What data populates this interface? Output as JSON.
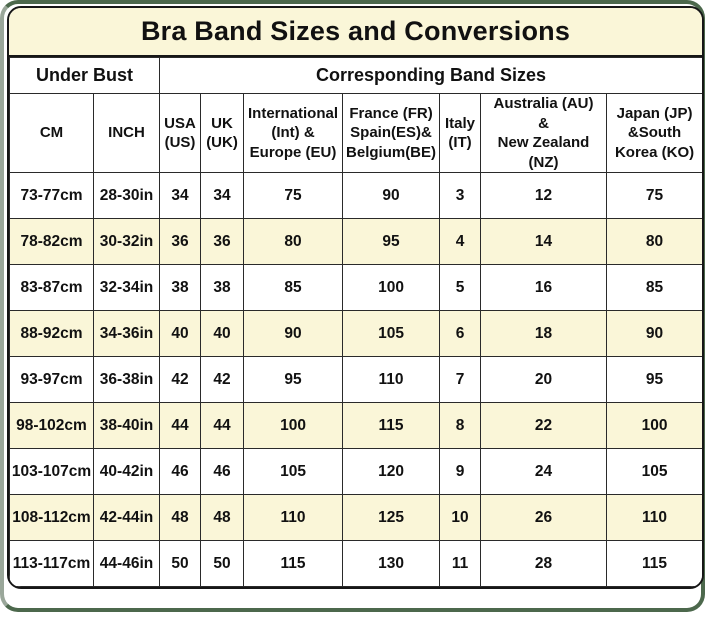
{
  "title": "Bra Band Sizes and Conversions",
  "table": {
    "group_headers": [
      {
        "label": "Under Bust",
        "colspan": 2
      },
      {
        "label": "Corresponding Band Sizes",
        "colspan": 7
      }
    ],
    "columns": [
      "CM",
      "INCH",
      "USA\n(US)",
      "UK\n(UK)",
      "International\n(Int) &\nEurope (EU)",
      "France (FR)\nSpain(ES)&\nBelgium(BE)",
      "Italy\n(IT)",
      "Australia (AU)\n&\nNew Zealand\n(NZ)",
      "Japan (JP)\n&South\nKorea (KO)"
    ],
    "rows": [
      [
        "73-77cm",
        "28-30in",
        "34",
        "34",
        "75",
        "90",
        "3",
        "12",
        "75"
      ],
      [
        "78-82cm",
        "30-32in",
        "36",
        "36",
        "80",
        "95",
        "4",
        "14",
        "80"
      ],
      [
        "83-87cm",
        "32-34in",
        "38",
        "38",
        "85",
        "100",
        "5",
        "16",
        "85"
      ],
      [
        "88-92cm",
        "34-36in",
        "40",
        "40",
        "90",
        "105",
        "6",
        "18",
        "90"
      ],
      [
        "93-97cm",
        "36-38in",
        "42",
        "42",
        "95",
        "110",
        "7",
        "20",
        "95"
      ],
      [
        "98-102cm",
        "38-40in",
        "44",
        "44",
        "100",
        "115",
        "8",
        "22",
        "100"
      ],
      [
        "103-107cm",
        "40-42in",
        "46",
        "46",
        "105",
        "120",
        "9",
        "24",
        "105"
      ],
      [
        "108-112cm",
        "42-44in",
        "48",
        "48",
        "110",
        "125",
        "10",
        "26",
        "110"
      ],
      [
        "113-117cm",
        "44-46in",
        "50",
        "50",
        "115",
        "130",
        "11",
        "28",
        "115"
      ]
    ]
  },
  "colors": {
    "title_background": "#faf6d8",
    "row_alternate": "#faf6d8",
    "row_default": "#ffffff",
    "border": "#161616",
    "shadow_green": "#4c684c",
    "shadow_left": "#9aa79a",
    "text": "#111111"
  }
}
